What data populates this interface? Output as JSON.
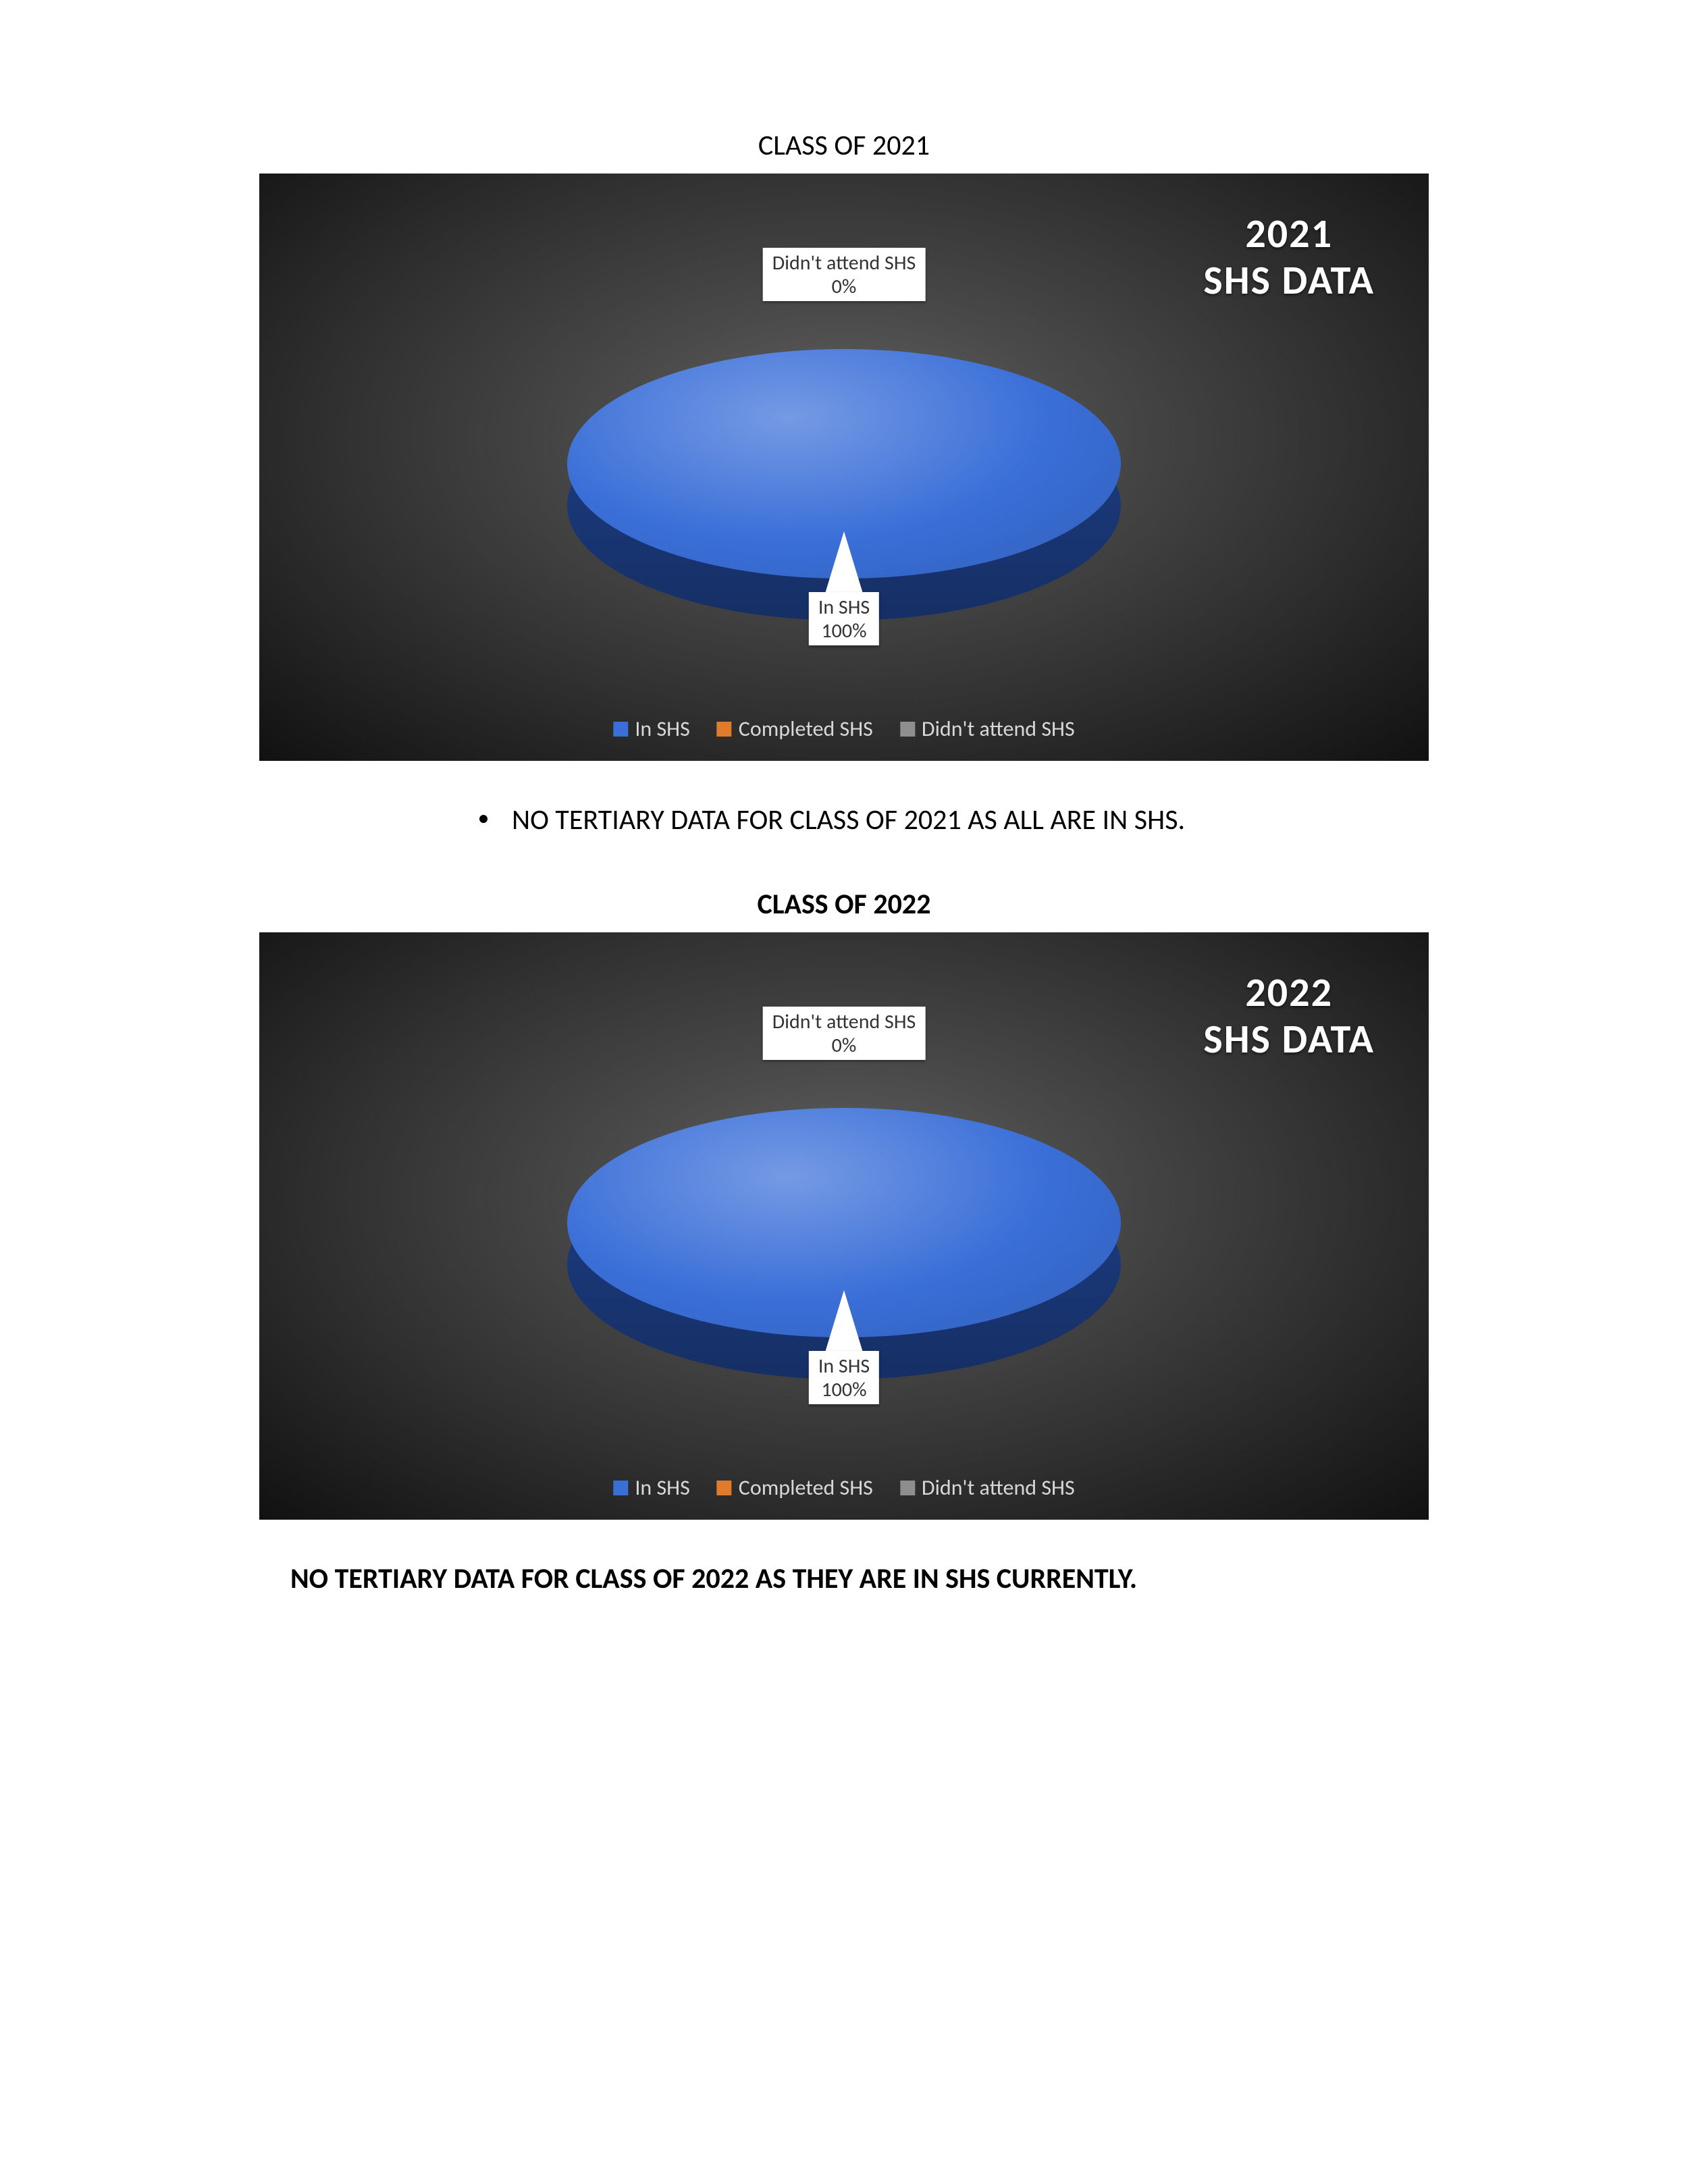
{
  "charts": [
    {
      "section_heading": "CLASS OF 2021",
      "section_heading_bold": false,
      "title_line1": "2021",
      "title_line2": "SHS DATA",
      "type": "pie-3d",
      "background_gradient_center": "#646464",
      "background_gradient_edge": "#111111",
      "pie_top_color": "#3a6fd8",
      "pie_side_color": "#1d3e86",
      "slices": [
        {
          "name": "In SHS",
          "value": 100,
          "color": "#3a6fd8"
        },
        {
          "name": "Completed SHS",
          "value": 0,
          "color": "#e07b2c"
        },
        {
          "name": "Didn't attend SHS",
          "value": 0,
          "color": "#8e8e8e"
        }
      ],
      "label_top_name": "Didn't attend SHS",
      "label_top_pct": "0%",
      "label_bottom_name": "In SHS",
      "label_bottom_pct": "100%",
      "label_bg": "#ffffff",
      "label_text_color": "#333333",
      "legend_text_color": "#d8d8d8",
      "legend": [
        {
          "label": "In SHS",
          "swatch": "#3a6fd8"
        },
        {
          "label": "Completed SHS",
          "swatch": "#e07b2c"
        },
        {
          "label": "Didn't attend SHS",
          "swatch": "#8e8e8e"
        }
      ],
      "note_text": "NO TERTIARY DATA FOR CLASS OF 2021 AS ALL ARE IN SHS.",
      "note_style": "bullet"
    },
    {
      "section_heading": "CLASS OF 2022",
      "section_heading_bold": true,
      "title_line1": "2022",
      "title_line2": "SHS DATA",
      "type": "pie-3d",
      "background_gradient_center": "#646464",
      "background_gradient_edge": "#111111",
      "pie_top_color": "#3a6fd8",
      "pie_side_color": "#1d3e86",
      "slices": [
        {
          "name": "In SHS",
          "value": 100,
          "color": "#3a6fd8"
        },
        {
          "name": "Completed SHS",
          "value": 0,
          "color": "#e07b2c"
        },
        {
          "name": "Didn't attend SHS",
          "value": 0,
          "color": "#8e8e8e"
        }
      ],
      "label_top_name": "Didn't attend SHS",
      "label_top_pct": "0%",
      "label_bottom_name": "In SHS",
      "label_bottom_pct": "100%",
      "label_bg": "#ffffff",
      "label_text_color": "#333333",
      "legend_text_color": "#d8d8d8",
      "legend": [
        {
          "label": "In SHS",
          "swatch": "#3a6fd8"
        },
        {
          "label": "Completed SHS",
          "swatch": "#e07b2c"
        },
        {
          "label": "Didn't attend SHS",
          "swatch": "#8e8e8e"
        }
      ],
      "note_text": "NO TERTIARY DATA FOR CLASS OF 2022 AS THEY ARE IN SHS CURRENTLY.",
      "note_style": "bold-left"
    }
  ]
}
